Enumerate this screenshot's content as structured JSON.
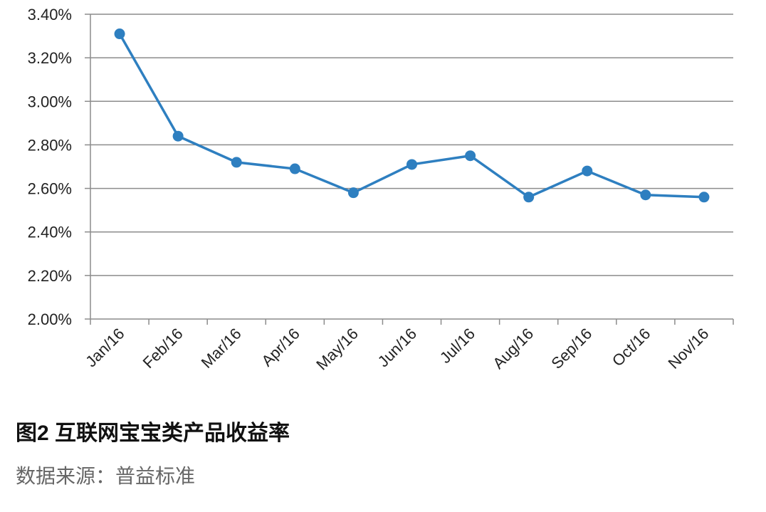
{
  "chart_data": {
    "type": "line",
    "title": "图2  互联网宝宝类产品收益率",
    "source": "数据来源：普益标准",
    "categories": [
      "Jan/16",
      "Feb/16",
      "Mar/16",
      "Apr/16",
      "May/16",
      "Jun/16",
      "Jul/16",
      "Aug/16",
      "Sep/16",
      "Oct/16",
      "Nov/16"
    ],
    "series": [
      {
        "color": "#2e7fc0",
        "values": [
          3.31,
          2.84,
          2.72,
          2.69,
          2.58,
          2.71,
          2.75,
          2.56,
          2.68,
          2.57,
          2.56
        ]
      }
    ],
    "ylim": [
      2.0,
      3.4
    ],
    "yticks": [
      {
        "value": 2.0,
        "label": "2.00%"
      },
      {
        "value": 2.2,
        "label": "2.20%"
      },
      {
        "value": 2.4,
        "label": "2.40%"
      },
      {
        "value": 2.6,
        "label": "2.60%"
      },
      {
        "value": 2.8,
        "label": "2.80%"
      },
      {
        "value": 3.0,
        "label": "3.00%"
      },
      {
        "value": 3.2,
        "label": "3.20%"
      },
      {
        "value": 3.4,
        "label": "3.40%"
      }
    ],
    "grid": true
  }
}
